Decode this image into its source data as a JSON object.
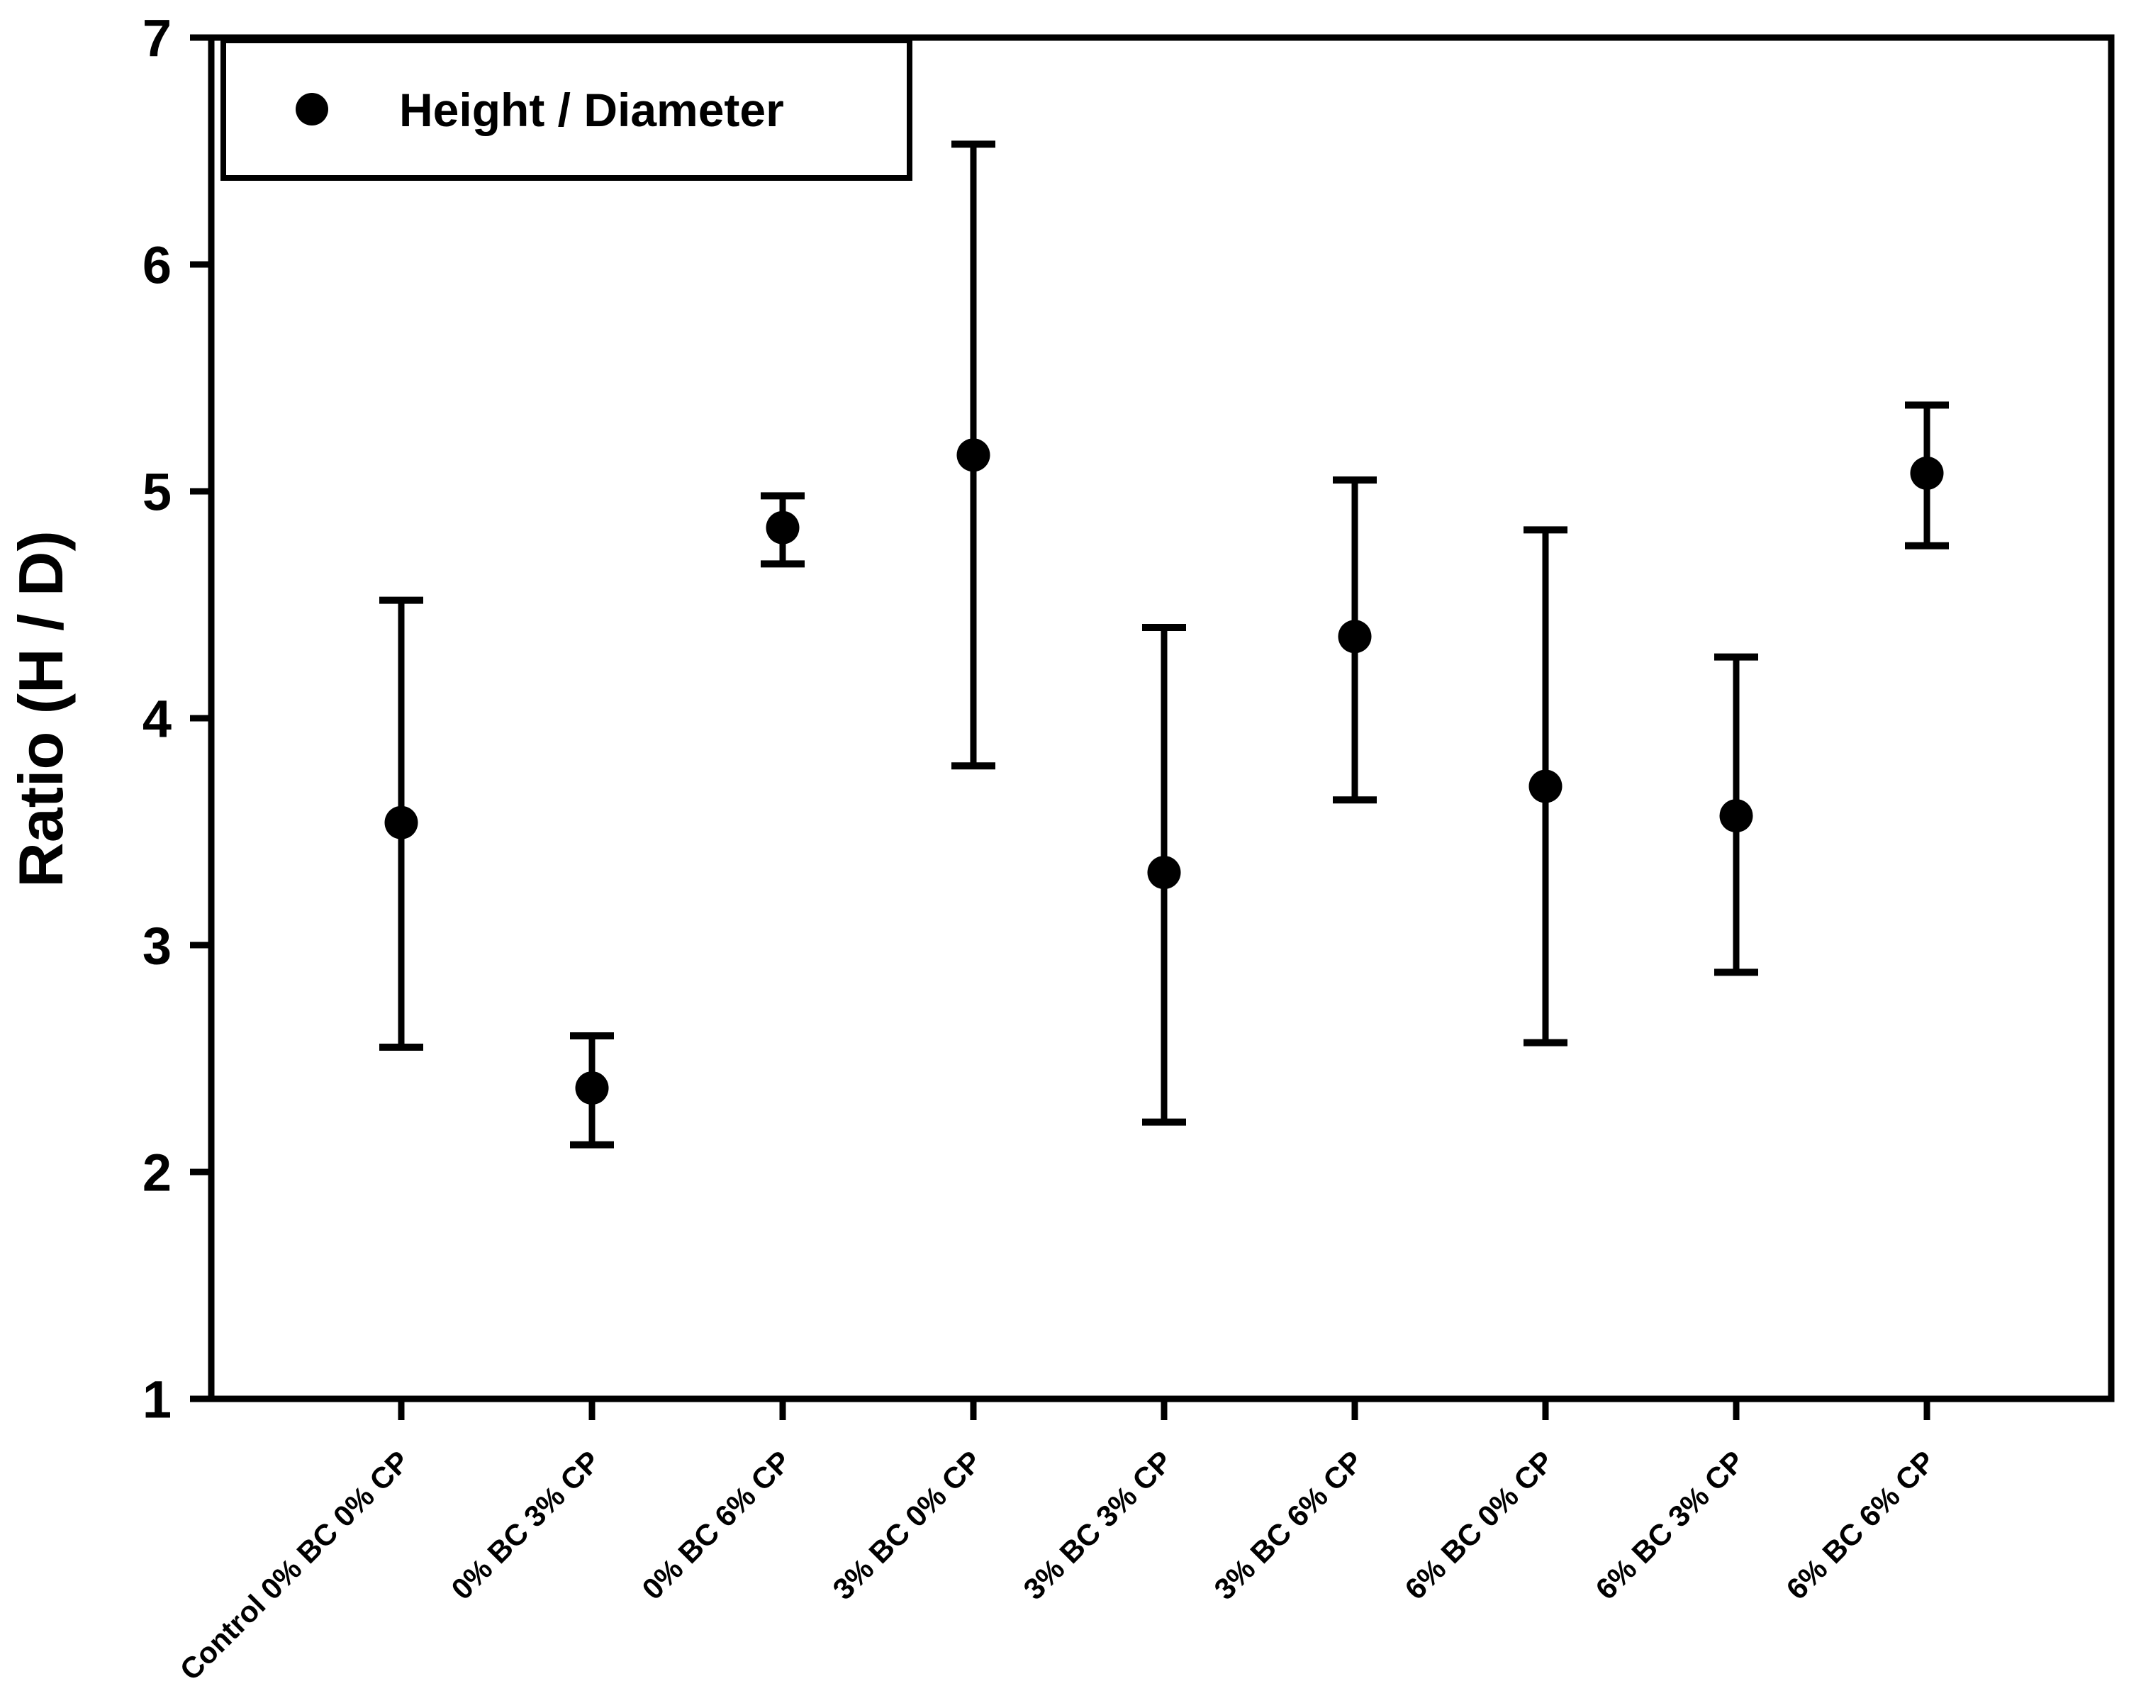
{
  "figure": {
    "background": "#ffffff",
    "foreground": "#000000"
  },
  "chart_data": {
    "type": "scatter",
    "title": "",
    "xlabel": "",
    "ylabel": "Ratio (H / D)",
    "ylim": [
      1,
      7
    ],
    "yticks": [
      1,
      2,
      3,
      4,
      5,
      6,
      7
    ],
    "grid": false,
    "frame": "full-box",
    "legend": {
      "label": "Height / Diameter",
      "position": "top-left",
      "border": true,
      "marker": "filled-circle"
    },
    "categories": [
      "Control 0% BC 0% CP",
      "0% BC 3% CP",
      "0% BC 6% CP",
      "3% BC 0% CP",
      "3% BC 3% CP",
      "3% BC 6% CP",
      "6% BC 0% CP",
      "6% BC 3% CP",
      "6% BC 6% CP"
    ],
    "series": [
      {
        "name": "Height / Diameter",
        "marker": "filled-circle",
        "color": "#000000",
        "means": [
          3.54,
          2.37,
          4.84,
          5.16,
          3.32,
          4.36,
          3.7,
          3.57,
          5.08
        ],
        "error_upper": [
          4.52,
          2.6,
          4.98,
          6.53,
          4.4,
          5.05,
          4.83,
          4.27,
          5.38
        ],
        "error_lower": [
          2.55,
          2.12,
          4.68,
          3.79,
          2.22,
          3.64,
          2.57,
          2.88,
          4.76
        ]
      }
    ]
  }
}
